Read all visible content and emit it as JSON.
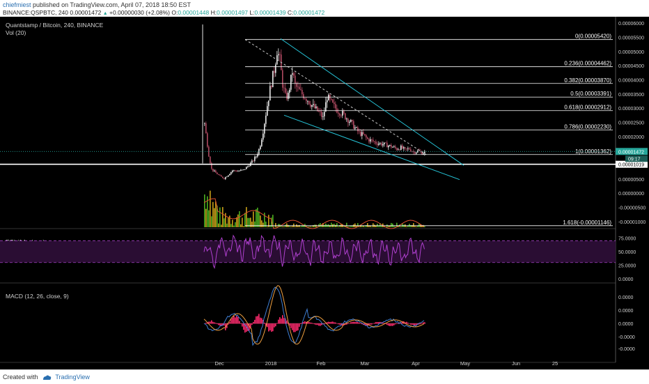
{
  "header": {
    "username": "chiefmiest",
    "published": "published on TradingView.com, April 07, 2018 18:50 EST",
    "symbol_line": "BINANCE:QSPBTC, 240",
    "last": "0.00001472",
    "change": "+0.00000030 (+2.08%)",
    "o_label": "O:",
    "o_val": "0.00001448",
    "h_label": "H:",
    "h_val": "0.00001497",
    "l_label": "L:",
    "l_val": "0.00001439",
    "c_label": "C:",
    "c_val": "0.00001472"
  },
  "footer": {
    "created_with": "Created with",
    "brand": "TradingView"
  },
  "colors": {
    "background": "#000000",
    "candle_up": "#e9e9e9",
    "candle_down": "#b04a62",
    "fib_line": "#ffffff",
    "trend_line": "#26c6da",
    "rsi_line": "#b040d0",
    "rsi_band": "#2a0d33",
    "macd_line": "#3f7fd4",
    "signal_line": "#f0a040",
    "hist_color": "#ff2a6d",
    "vol_up": "#4caf20",
    "vol_down": "#c8a018",
    "last_price_badge": "#26a69a",
    "axis_text": "#d0d0d0"
  },
  "chart_data": [
    {
      "type": "candlestick",
      "title": "Quantstamp / Bitcoin, 240, BINANCE",
      "indicator_label": "Vol (20)",
      "x_tick_labels": [
        "Dec",
        "2018",
        "Feb",
        "Mar",
        "Apr",
        "May",
        "Jun",
        "25"
      ],
      "y_tick_labels": [
        "0.00006000",
        "0.00005500",
        "0.00005000",
        "0.00004500",
        "0.00004000",
        "0.00003500",
        "0.00003000",
        "0.00002500",
        "0.00002000",
        "0.00000500",
        "0.00000000",
        "-0.00000500",
        "-0.00001000"
      ],
      "ylim": [
        -1.2e-05,
        6.15e-05
      ],
      "price_path": [
        [
          0,
          2.45e-05
        ],
        [
          3,
          1.9e-05
        ],
        [
          6,
          1.35e-05
        ],
        [
          10,
          8.5e-06
        ],
        [
          16,
          7.2e-06
        ],
        [
          22,
          6e-06
        ],
        [
          28,
          5.2e-06
        ],
        [
          34,
          6.5e-06
        ],
        [
          40,
          8e-06
        ],
        [
          48,
          7.8e-06
        ],
        [
          56,
          8.2e-06
        ],
        [
          62,
          9.5e-06
        ],
        [
          68,
          1.1e-05
        ],
        [
          74,
          1.3e-05
        ],
        [
          79,
          1.6e-05
        ],
        [
          84,
          2.2e-05
        ],
        [
          90,
          3.1e-05
        ],
        [
          95,
          3.8e-05
        ],
        [
          100,
          4.35e-05
        ],
        [
          104,
          5.05e-05
        ],
        [
          108,
          4.7e-05
        ],
        [
          112,
          3.85e-05
        ],
        [
          116,
          3.4e-05
        ],
        [
          120,
          3.45e-05
        ],
        [
          126,
          4.3e-05
        ],
        [
          130,
          3.8e-05
        ],
        [
          136,
          3.6e-05
        ],
        [
          142,
          3.45e-05
        ],
        [
          148,
          3.3e-05
        ],
        [
          154,
          3.1e-05
        ],
        [
          160,
          2.95e-05
        ],
        [
          166,
          2.8e-05
        ],
        [
          170,
          2.65e-05
        ],
        [
          176,
          3.4e-05
        ],
        [
          180,
          3.25e-05
        ],
        [
          186,
          3.05e-05
        ],
        [
          192,
          2.9e-05
        ],
        [
          198,
          2.8e-05
        ],
        [
          204,
          2.65e-05
        ],
        [
          210,
          2.5e-05
        ],
        [
          216,
          2.3e-05
        ],
        [
          222,
          2.12e-05
        ],
        [
          228,
          2.05e-05
        ],
        [
          234,
          1.9e-05
        ],
        [
          240,
          1.85e-05
        ],
        [
          246,
          1.78e-05
        ],
        [
          252,
          1.75e-05
        ],
        [
          258,
          1.72e-05
        ],
        [
          264,
          1.68e-05
        ],
        [
          270,
          1.63e-05
        ],
        [
          276,
          1.56e-05
        ],
        [
          282,
          1.61e-05
        ],
        [
          288,
          1.52e-05
        ],
        [
          294,
          1.57e-05
        ],
        [
          300,
          1.45e-05
        ],
        [
          306,
          1.48e-05
        ],
        [
          312,
          1.42e-05
        ],
        [
          318,
          1.47e-05
        ]
      ],
      "fib_levels": [
        {
          "label": "0(0.00005420)",
          "value": 5.42e-05
        },
        {
          "label": "0.236(0.00004462)",
          "value": 4.462e-05
        },
        {
          "label": "0.382(0.00003870)",
          "value": 3.87e-05
        },
        {
          "label": "0.5(0.00003391)",
          "value": 3.391e-05
        },
        {
          "label": "0.618(0.00002912)",
          "value": 2.912e-05
        },
        {
          "label": "0.786(0.00002230)",
          "value": 2.23e-05
        },
        {
          "label": "1(0.00001362)",
          "value": 1.362e-05
        },
        {
          "label": "1.618(-0.00001146)",
          "value": -1.146e-05
        }
      ],
      "horizontal_line": {
        "label": "0.00001019",
        "value": 1.019e-05
      },
      "last_price": {
        "label": "0.00001472",
        "countdown": "09:17",
        "value": 1.472e-05
      }
    },
    {
      "type": "line",
      "title": "RSI (14, close)",
      "y_tick_labels": [
        "75.0000",
        "50.0000",
        "25.0000",
        "0.0000"
      ],
      "upper_band": 70,
      "lower_band": 30,
      "ylim": [
        -5,
        90
      ]
    },
    {
      "type": "line",
      "title": "MACD (12, 26, close, 9)",
      "y_tick_labels": [
        "0.0000",
        "0.0000",
        "0.0000",
        "-0.0000",
        "-0.0000"
      ],
      "series": [
        {
          "values": []
        },
        {
          "values": []
        }
      ]
    }
  ]
}
